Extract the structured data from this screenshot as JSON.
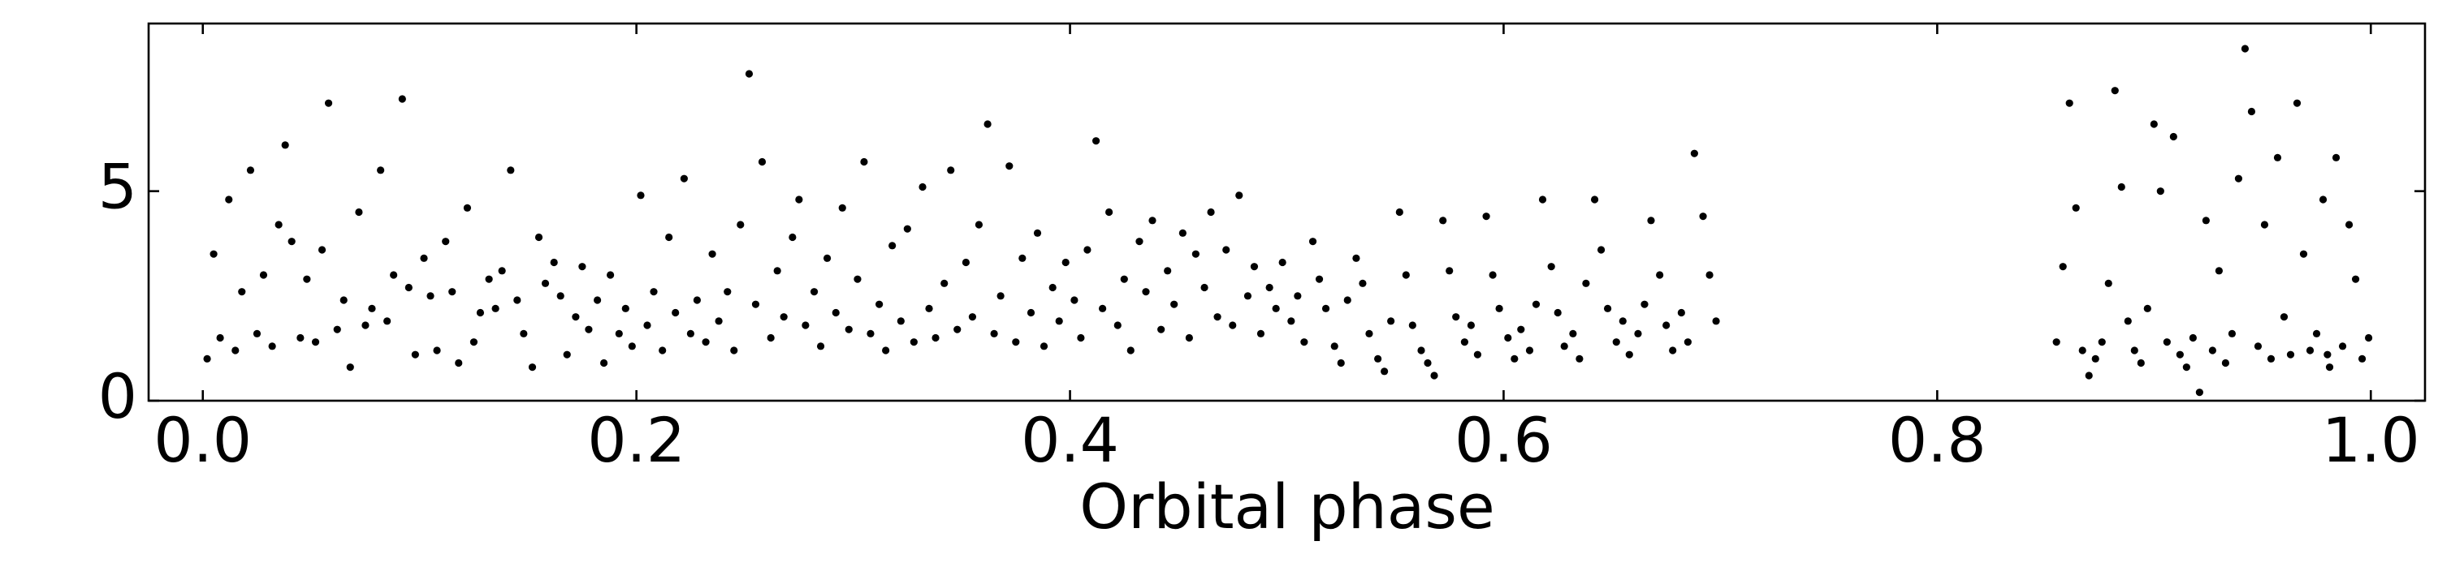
{
  "chart_data": {
    "type": "scatter",
    "xlabel": "Orbital phase",
    "color": "#000000",
    "xlim": [
      -0.025,
      1.025
    ],
    "ylim": [
      0,
      9
    ],
    "xticks": [
      {
        "value": 0,
        "label": "0.0"
      },
      0.2,
      0.4,
      0.6,
      0.8,
      {
        "value": 1,
        "label": "1.0"
      }
    ],
    "yticks": [
      0,
      5
    ],
    "x": [
      0.002,
      0.005,
      0.008,
      0.012,
      0.015,
      0.018,
      0.022,
      0.025,
      0.028,
      0.032,
      0.035,
      0.038,
      0.041,
      0.045,
      0.048,
      0.052,
      0.055,
      0.058,
      0.062,
      0.065,
      0.068,
      0.072,
      0.075,
      0.078,
      0.082,
      0.085,
      0.088,
      0.092,
      0.095,
      0.098,
      0.102,
      0.105,
      0.108,
      0.112,
      0.115,
      0.118,
      0.122,
      0.125,
      0.128,
      0.132,
      0.135,
      0.138,
      0.142,
      0.145,
      0.148,
      0.152,
      0.155,
      0.158,
      0.162,
      0.165,
      0.168,
      0.172,
      0.175,
      0.178,
      0.182,
      0.185,
      0.188,
      0.192,
      0.195,
      0.198,
      0.202,
      0.205,
      0.208,
      0.212,
      0.215,
      0.218,
      0.222,
      0.225,
      0.228,
      0.232,
      0.235,
      0.238,
      0.242,
      0.245,
      0.248,
      0.252,
      0.255,
      0.258,
      0.262,
      0.265,
      0.268,
      0.272,
      0.275,
      0.278,
      0.282,
      0.285,
      0.288,
      0.292,
      0.295,
      0.298,
      0.302,
      0.305,
      0.308,
      0.312,
      0.315,
      0.318,
      0.322,
      0.325,
      0.328,
      0.332,
      0.335,
      0.338,
      0.342,
      0.345,
      0.348,
      0.352,
      0.355,
      0.358,
      0.362,
      0.365,
      0.368,
      0.372,
      0.375,
      0.378,
      0.382,
      0.385,
      0.388,
      0.392,
      0.395,
      0.398,
      0.402,
      0.405,
      0.408,
      0.412,
      0.415,
      0.418,
      0.422,
      0.425,
      0.428,
      0.432,
      0.435,
      0.438,
      0.442,
      0.445,
      0.448,
      0.452,
      0.455,
      0.458,
      0.462,
      0.465,
      0.468,
      0.472,
      0.475,
      0.478,
      0.482,
      0.485,
      0.488,
      0.492,
      0.495,
      0.498,
      0.502,
      0.505,
      0.508,
      0.512,
      0.515,
      0.518,
      0.522,
      0.525,
      0.528,
      0.532,
      0.535,
      0.538,
      0.542,
      0.545,
      0.548,
      0.552,
      0.555,
      0.558,
      0.562,
      0.565,
      0.568,
      0.572,
      0.575,
      0.578,
      0.582,
      0.585,
      0.588,
      0.592,
      0.595,
      0.598,
      0.602,
      0.605,
      0.608,
      0.612,
      0.615,
      0.618,
      0.622,
      0.625,
      0.628,
      0.632,
      0.635,
      0.638,
      0.642,
      0.645,
      0.648,
      0.652,
      0.655,
      0.658,
      0.662,
      0.665,
      0.668,
      0.672,
      0.675,
      0.678,
      0.682,
      0.685,
      0.688,
      0.692,
      0.695,
      0.698,
      0.855,
      0.858,
      0.861,
      0.864,
      0.867,
      0.87,
      0.873,
      0.876,
      0.879,
      0.882,
      0.885,
      0.888,
      0.891,
      0.894,
      0.897,
      0.9,
      0.903,
      0.906,
      0.909,
      0.912,
      0.915,
      0.918,
      0.921,
      0.924,
      0.927,
      0.93,
      0.933,
      0.936,
      0.939,
      0.942,
      0.945,
      0.948,
      0.951,
      0.954,
      0.957,
      0.96,
      0.963,
      0.966,
      0.969,
      0.972,
      0.975,
      0.978,
      0.981,
      0.984,
      0.987,
      0.99,
      0.993,
      0.996,
      0.999,
      0.98
    ],
    "values": [
      1.0,
      3.5,
      1.5,
      4.8,
      1.2,
      2.6,
      5.5,
      1.6,
      3.0,
      1.3,
      4.2,
      6.1,
      3.8,
      1.5,
      2.9,
      1.4,
      3.6,
      7.1,
      1.7,
      2.4,
      0.8,
      4.5,
      1.8,
      2.2,
      5.5,
      1.9,
      3.0,
      7.2,
      2.7,
      1.1,
      3.4,
      2.5,
      1.2,
      3.8,
      2.6,
      0.9,
      4.6,
      1.4,
      2.1,
      2.9,
      2.2,
      3.1,
      5.5,
      2.4,
      1.6,
      0.8,
      3.9,
      2.8,
      3.3,
      2.5,
      1.1,
      2.0,
      3.2,
      1.7,
      2.4,
      0.9,
      3.0,
      1.6,
      2.2,
      1.3,
      4.9,
      1.8,
      2.6,
      1.2,
      3.9,
      2.1,
      5.3,
      1.6,
      2.4,
      1.4,
      3.5,
      1.9,
      2.6,
      1.2,
      4.2,
      7.8,
      2.3,
      5.7,
      1.5,
      3.1,
      2.0,
      3.9,
      4.8,
      1.8,
      2.6,
      1.3,
      3.4,
      2.1,
      4.6,
      1.7,
      2.9,
      5.7,
      1.6,
      2.3,
      1.2,
      3.7,
      1.9,
      4.1,
      1.4,
      5.1,
      2.2,
      1.5,
      2.8,
      5.5,
      1.7,
      3.3,
      2.0,
      4.2,
      6.6,
      1.6,
      2.5,
      5.6,
      1.4,
      3.4,
      2.1,
      4.0,
      1.3,
      2.7,
      1.9,
      3.3,
      2.4,
      1.5,
      3.6,
      6.2,
      2.2,
      4.5,
      1.8,
      2.9,
      1.2,
      3.8,
      2.6,
      4.3,
      1.7,
      3.1,
      2.3,
      4.0,
      1.5,
      3.5,
      2.7,
      4.5,
      2.0,
      3.6,
      1.8,
      4.9,
      2.5,
      3.2,
      1.6,
      2.7,
      2.2,
      3.3,
      1.9,
      2.5,
      1.4,
      3.8,
      2.9,
      2.2,
      1.3,
      0.9,
      2.4,
      3.4,
      2.8,
      1.6,
      1.0,
      0.7,
      1.9,
      4.5,
      3.0,
      1.8,
      1.2,
      0.9,
      0.6,
      4.3,
      3.1,
      2.0,
      1.4,
      1.8,
      1.1,
      4.4,
      3.0,
      2.2,
      1.5,
      1.0,
      1.7,
      1.2,
      2.3,
      4.8,
      3.2,
      2.1,
      1.3,
      1.6,
      1.0,
      2.8,
      4.8,
      3.6,
      2.2,
      1.4,
      1.9,
      1.1,
      1.6,
      2.3,
      4.3,
      3.0,
      1.8,
      1.2,
      2.1,
      1.4,
      5.9,
      4.4,
      3.0,
      1.9,
      1.4,
      3.2,
      7.1,
      4.6,
      1.2,
      0.6,
      1.0,
      1.4,
      2.8,
      7.4,
      5.1,
      1.9,
      1.2,
      0.9,
      2.2,
      6.6,
      5.0,
      1.4,
      6.3,
      1.1,
      0.8,
      1.5,
      0.2,
      4.3,
      1.2,
      3.1,
      0.9,
      1.6,
      5.3,
      8.4,
      6.9,
      1.3,
      4.2,
      1.0,
      5.8,
      2.0,
      1.1,
      7.1,
      3.5,
      1.2,
      1.6,
      4.8,
      0.8,
      5.8,
      1.3,
      4.2,
      2.9,
      1.0,
      1.5,
      1.1
    ]
  }
}
